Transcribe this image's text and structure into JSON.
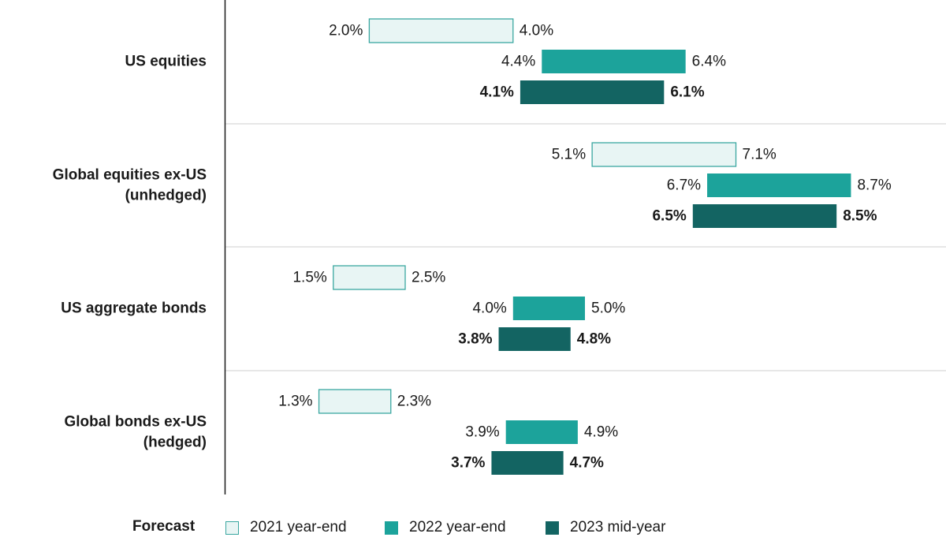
{
  "chart_data": {
    "type": "range-bar",
    "categories": [
      [
        "US equities"
      ],
      [
        "Global equities ex-US",
        "(unhedged)"
      ],
      [
        "US aggregate bonds"
      ],
      [
        "Global bonds ex-US",
        "(hedged)"
      ]
    ],
    "series": [
      {
        "name": "2021 year-end",
        "ranges": [
          [
            2.0,
            4.0
          ],
          [
            5.1,
            7.1
          ],
          [
            1.5,
            2.5
          ],
          [
            1.3,
            2.3
          ]
        ],
        "labels": [
          [
            "2.0%",
            "4.0%"
          ],
          [
            "5.1%",
            "7.1%"
          ],
          [
            "1.5%",
            "2.5%"
          ],
          [
            "1.3%",
            "2.3%"
          ]
        ]
      },
      {
        "name": "2022 year-end",
        "ranges": [
          [
            4.4,
            6.4
          ],
          [
            6.7,
            8.7
          ],
          [
            4.0,
            5.0
          ],
          [
            3.9,
            4.9
          ]
        ],
        "labels": [
          [
            "4.4%",
            "6.4%"
          ],
          [
            "6.7%",
            "8.7%"
          ],
          [
            "4.0%",
            "5.0%"
          ],
          [
            "3.9%",
            "4.9%"
          ]
        ]
      },
      {
        "name": "2023 mid-year",
        "ranges": [
          [
            4.1,
            6.1
          ],
          [
            6.5,
            8.5
          ],
          [
            3.8,
            4.8
          ],
          [
            3.7,
            4.7
          ]
        ],
        "labels": [
          [
            "4.1%",
            "6.1%"
          ],
          [
            "6.5%",
            "8.5%"
          ],
          [
            "3.8%",
            "4.8%"
          ],
          [
            "3.7%",
            "4.7%"
          ]
        ]
      }
    ],
    "legend": {
      "title": "Forecast",
      "placement": "bottom"
    }
  },
  "colors": {
    "series_fill": [
      "#e8f5f4",
      "#1ca39b",
      "#136462"
    ],
    "series_stroke": [
      "#3aa7a0",
      "#1ca39b",
      "#136462"
    ],
    "divider": "#cfcfcf",
    "axis": "#1a1a1a"
  }
}
